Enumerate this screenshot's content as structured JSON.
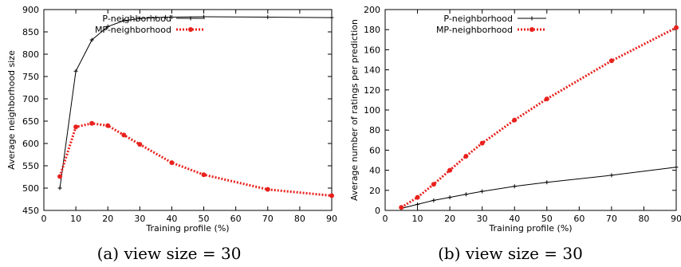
{
  "chart_data": [
    {
      "type": "line",
      "xlabel": "Training profile (%)",
      "ylabel": "Average neighborhood size",
      "xlim": [
        0,
        90
      ],
      "ylim": [
        450,
        900
      ],
      "xticks": [
        0,
        10,
        20,
        30,
        40,
        50,
        60,
        70,
        80,
        90
      ],
      "yticks": [
        450,
        500,
        550,
        600,
        650,
        700,
        750,
        800,
        850,
        900
      ],
      "grid": false,
      "legend_position": "top-left",
      "caption": "(a) view size = 30",
      "series": [
        {
          "name": "P-neighborhood",
          "color": "#000000",
          "style": "solid",
          "x": [
            5,
            10,
            15,
            20,
            25,
            30,
            35,
            38,
            40,
            50,
            70,
            90
          ],
          "y": [
            500,
            762,
            832,
            862,
            875,
            880,
            882,
            883,
            883,
            884,
            883,
            882
          ]
        },
        {
          "name": "MP-neighborhood",
          "color": "#e8211d",
          "style": "dotted",
          "x": [
            5,
            10,
            15,
            20,
            25,
            30,
            40,
            50,
            70,
            90
          ],
          "y": [
            526,
            637,
            645,
            640,
            619,
            598,
            557,
            530,
            497,
            483
          ]
        }
      ]
    },
    {
      "type": "line",
      "xlabel": "Training profile (%)",
      "ylabel": "Average number of ratings per prediction",
      "xlim": [
        0,
        90
      ],
      "ylim": [
        0,
        200
      ],
      "xticks": [
        0,
        10,
        20,
        30,
        40,
        50,
        60,
        70,
        80,
        90
      ],
      "yticks": [
        0,
        20,
        40,
        60,
        80,
        100,
        120,
        140,
        160,
        180,
        200
      ],
      "grid": false,
      "legend_position": "top-left",
      "caption": "(b) view size = 30",
      "series": [
        {
          "name": "P-neighborhood",
          "color": "#000000",
          "style": "solid",
          "x": [
            5,
            10,
            15,
            20,
            25,
            30,
            40,
            50,
            70,
            90
          ],
          "y": [
            2,
            6,
            10,
            13,
            16,
            19,
            24,
            28,
            35,
            43
          ]
        },
        {
          "name": "MP-neighborhood",
          "color": "#e8211d",
          "style": "dotted",
          "x": [
            5,
            10,
            15,
            20,
            25,
            30,
            40,
            50,
            70,
            90
          ],
          "y": [
            3,
            13,
            26,
            40,
            54,
            67,
            90,
            111,
            149,
            182
          ]
        }
      ]
    }
  ]
}
